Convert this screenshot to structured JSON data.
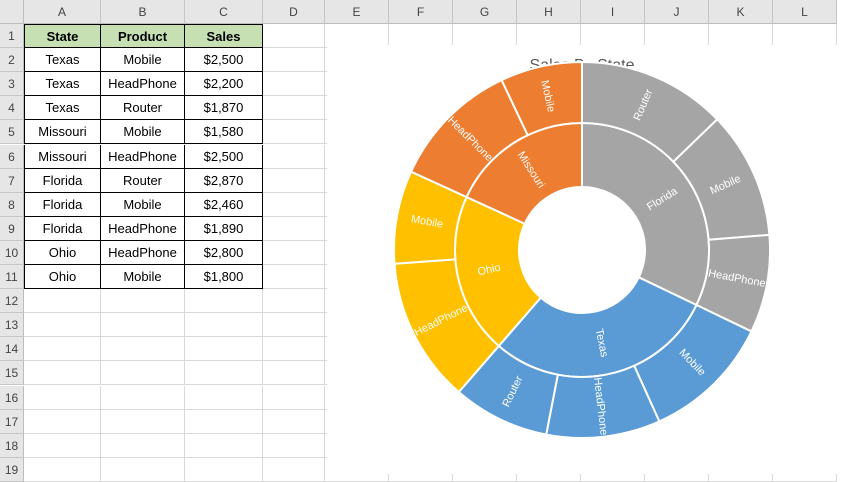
{
  "columns": [
    "A",
    "B",
    "C",
    "D",
    "E",
    "F",
    "G",
    "H",
    "I",
    "J",
    "K",
    "L"
  ],
  "rows": [
    "1",
    "2",
    "3",
    "4",
    "5",
    "6",
    "7",
    "8",
    "9",
    "10",
    "11",
    "12",
    "13",
    "14",
    "15",
    "16",
    "17",
    "18",
    "19"
  ],
  "table": {
    "headers": [
      "State",
      "Product",
      "Sales"
    ],
    "rows": [
      [
        "Texas",
        "Mobile",
        "$2,500"
      ],
      [
        "Texas",
        "HeadPhone",
        "$2,200"
      ],
      [
        "Texas",
        "Router",
        "$1,870"
      ],
      [
        "Missouri",
        "Mobile",
        "$1,580"
      ],
      [
        "Missouri",
        "HeadPhone",
        "$2,500"
      ],
      [
        "Florida",
        "Router",
        "$2,870"
      ],
      [
        "Florida",
        "Mobile",
        "$2,460"
      ],
      [
        "Florida",
        "HeadPhone",
        "$1,890"
      ],
      [
        "Ohio",
        "HeadPhone",
        "$2,800"
      ],
      [
        "Ohio",
        "Mobile",
        "$1,800"
      ]
    ]
  },
  "chart_data": {
    "type": "sunburst",
    "title": "Sales By State",
    "start_angle_deg": 0,
    "groups": [
      {
        "name": "Florida",
        "color": "#a5a5a5",
        "children": [
          {
            "name": "Router",
            "value": 2870
          },
          {
            "name": "Mobile",
            "value": 2460
          },
          {
            "name": "HeadPhone",
            "value": 1890
          }
        ]
      },
      {
        "name": "Texas",
        "color": "#5b9bd5",
        "children": [
          {
            "name": "Mobile",
            "value": 2500
          },
          {
            "name": "HeadPhone",
            "value": 2200
          },
          {
            "name": "Router",
            "value": 1870
          }
        ]
      },
      {
        "name": "Ohio",
        "color": "#ffc000",
        "children": [
          {
            "name": "HeadPhone",
            "value": 2800
          },
          {
            "name": "Mobile",
            "value": 1800
          }
        ]
      },
      {
        "name": "Missouri",
        "color": "#ed7d31",
        "children": [
          {
            "name": "HeadPhone",
            "value": 2500
          },
          {
            "name": "Mobile",
            "value": 1580
          }
        ]
      }
    ]
  }
}
